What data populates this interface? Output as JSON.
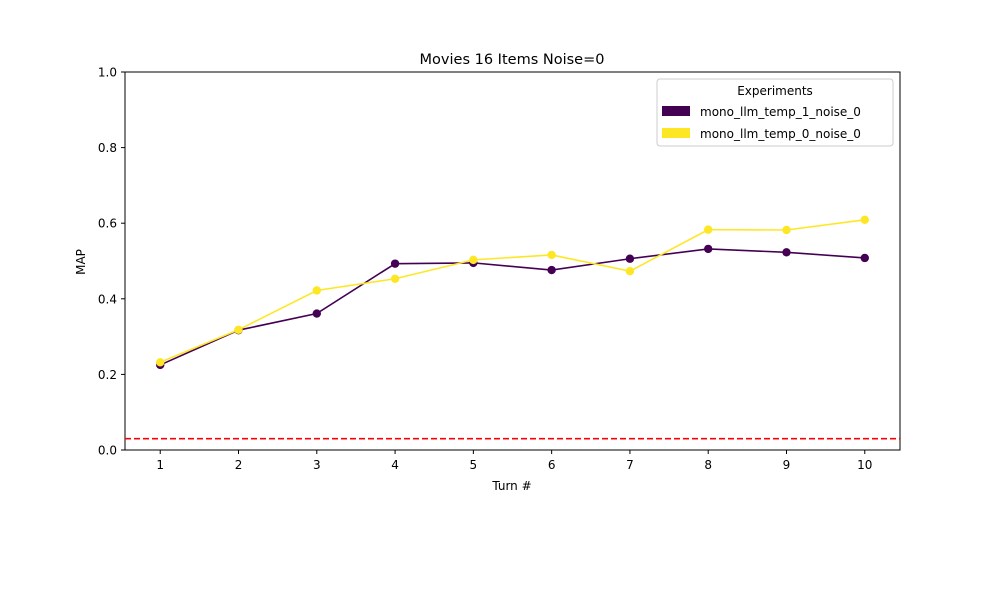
{
  "chart_data": {
    "type": "line",
    "title": "Movies 16 Items Noise=0",
    "xlabel": "Turn #",
    "ylabel": "MAP",
    "x": [
      1,
      2,
      3,
      4,
      5,
      6,
      7,
      8,
      9,
      10
    ],
    "xlim": [
      0.55,
      10.45
    ],
    "ylim": [
      0,
      1
    ],
    "xticks": [
      1,
      2,
      3,
      4,
      5,
      6,
      7,
      8,
      9,
      10
    ],
    "yticks": [
      0.0,
      0.2,
      0.4,
      0.6,
      0.8,
      1.0
    ],
    "ytick_labels": [
      "0.0",
      "0.2",
      "0.4",
      "0.6",
      "0.8",
      "1.0"
    ],
    "grid": false,
    "legend": {
      "title": "Experiments",
      "position": "top-right"
    },
    "series": [
      {
        "name": "mono_llm_temp_1_noise_0",
        "color": "#440154",
        "values": [
          0.225,
          0.317,
          0.361,
          0.493,
          0.495,
          0.476,
          0.506,
          0.532,
          0.523,
          0.508
        ]
      },
      {
        "name": "mono_llm_temp_0_noise_0",
        "color": "#fde725",
        "values": [
          0.232,
          0.318,
          0.422,
          0.453,
          0.503,
          0.516,
          0.473,
          0.583,
          0.582,
          0.609
        ]
      }
    ],
    "reference_line": {
      "y": 0.03,
      "style": "dashed",
      "color": "#ff0000"
    }
  }
}
